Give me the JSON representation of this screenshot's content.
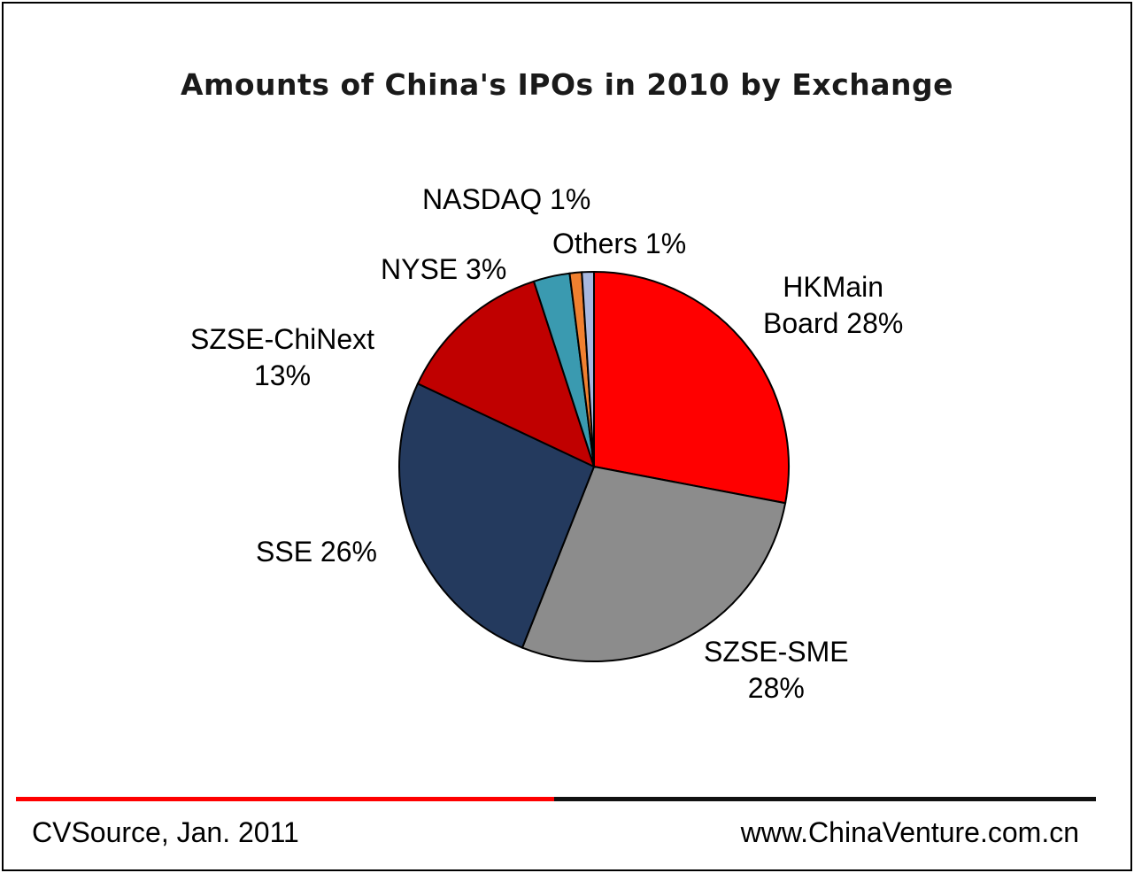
{
  "chart_data": {
    "type": "pie",
    "title": "Amounts of China's IPOs in 2010 by Exchange",
    "slices": [
      {
        "label": "HK Main Board",
        "value": 28,
        "display": "HKMain\nBoard 28%",
        "color": "#ff0000"
      },
      {
        "label": "SZSE-SME",
        "value": 28,
        "display": "SZSE-SME\n28%",
        "color": "#8c8c8c"
      },
      {
        "label": "SSE",
        "value": 26,
        "display": "SSE 26%",
        "color": "#243a5e"
      },
      {
        "label": "SZSE-ChiNext",
        "value": 13,
        "display": "SZSE-ChiNext\n13%",
        "color": "#c00000"
      },
      {
        "label": "NYSE",
        "value": 3,
        "display": "NYSE 3%",
        "color": "#3a9ab0"
      },
      {
        "label": "NASDAQ",
        "value": 1,
        "display": "NASDAQ 1%",
        "color": "#f08030"
      },
      {
        "label": "Others",
        "value": 1,
        "display": "Others 1%",
        "color": "#a8b8e0"
      }
    ]
  },
  "footer": {
    "source": "CVSource, Jan. 2011",
    "website": "www.ChinaVenture.com.cn"
  },
  "colors": {
    "rule_left": "#ff0000",
    "rule_right": "#111111"
  }
}
